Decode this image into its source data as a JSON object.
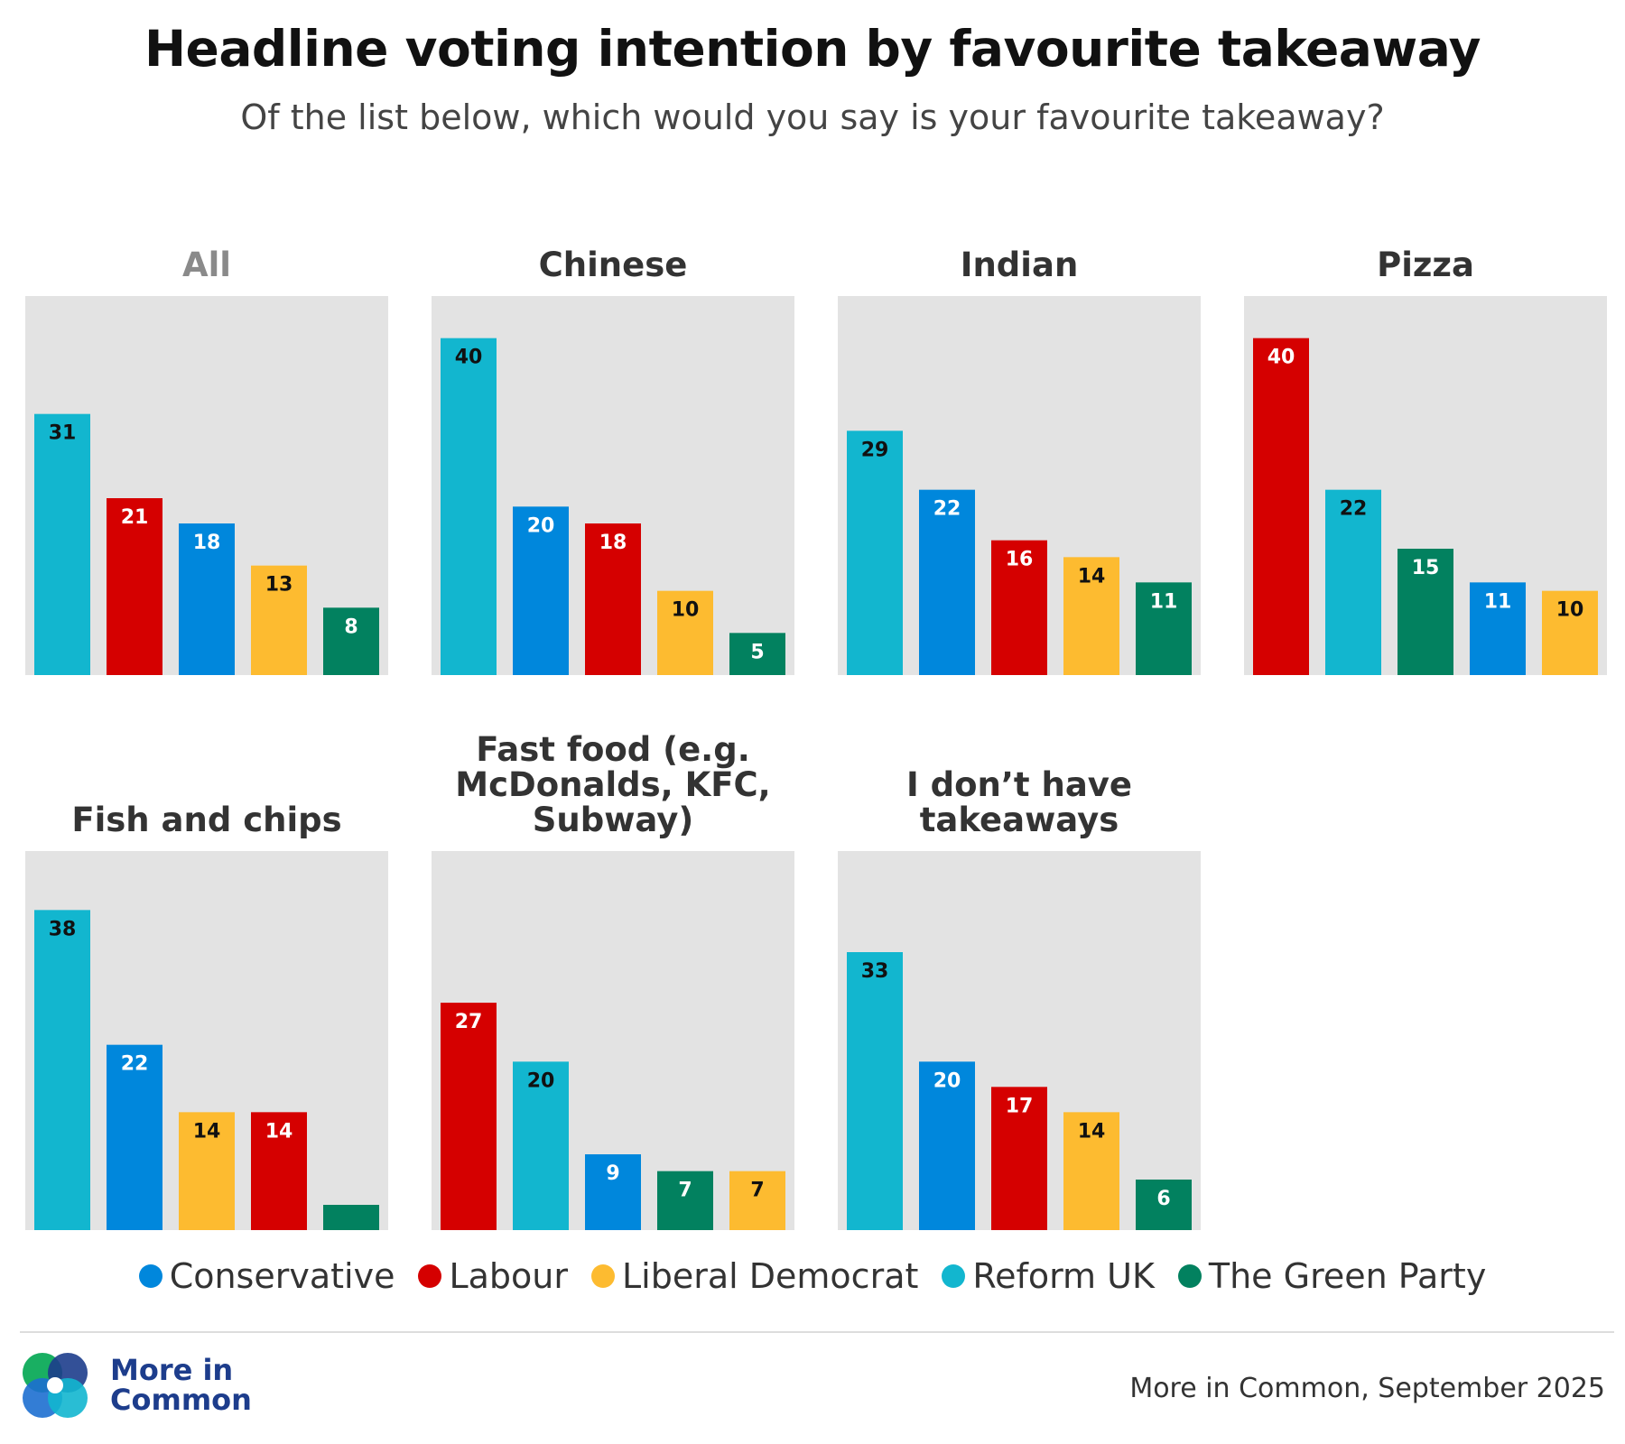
{
  "title": "Headline voting intention by favourite takeaway",
  "subtitle": "Of the list below, which would you say is your favourite takeaway?",
  "parties": {
    "Conservative": "#0087DC",
    "Labour": "#D50000",
    "Liberal Democrat": "#FDBB30",
    "Reform UK": "#12B6CF",
    "The Green Party": "#02815F"
  },
  "legend": [
    {
      "label": "Conservative",
      "color": "#0087DC"
    },
    {
      "label": "Labour",
      "color": "#D50000"
    },
    {
      "label": "Liberal Democrat",
      "color": "#FDBB30"
    },
    {
      "label": "Reform UK",
      "color": "#12B6CF"
    },
    {
      "label": "The Green Party",
      "color": "#02815F"
    }
  ],
  "chart_data": {
    "type": "bar",
    "title": "Headline voting intention by favourite takeaway",
    "ylim": [
      0,
      45
    ],
    "panels": [
      {
        "title": "All",
        "bars": [
          {
            "party": "Reform UK",
            "value": 31,
            "label": "31"
          },
          {
            "party": "Labour",
            "value": 21,
            "label": "21"
          },
          {
            "party": "Conservative",
            "value": 18,
            "label": "18"
          },
          {
            "party": "Liberal Democrat",
            "value": 13,
            "label": "13"
          },
          {
            "party": "The Green Party",
            "value": 8,
            "label": "8"
          }
        ]
      },
      {
        "title": "Chinese",
        "bars": [
          {
            "party": "Reform UK",
            "value": 40,
            "label": "40"
          },
          {
            "party": "Conservative",
            "value": 20,
            "label": "20"
          },
          {
            "party": "Labour",
            "value": 18,
            "label": "18"
          },
          {
            "party": "Liberal Democrat",
            "value": 10,
            "label": "10"
          },
          {
            "party": "The Green Party",
            "value": 5,
            "label": "5"
          }
        ]
      },
      {
        "title": "Indian",
        "bars": [
          {
            "party": "Reform UK",
            "value": 29,
            "label": "29"
          },
          {
            "party": "Conservative",
            "value": 22,
            "label": "22"
          },
          {
            "party": "Labour",
            "value": 16,
            "label": "16"
          },
          {
            "party": "Liberal Democrat",
            "value": 14,
            "label": "14"
          },
          {
            "party": "The Green Party",
            "value": 11,
            "label": "11"
          }
        ]
      },
      {
        "title": "Pizza",
        "bars": [
          {
            "party": "Labour",
            "value": 40,
            "label": "40"
          },
          {
            "party": "Reform UK",
            "value": 22,
            "label": "22"
          },
          {
            "party": "The Green Party",
            "value": 15,
            "label": "15"
          },
          {
            "party": "Conservative",
            "value": 11,
            "label": "11"
          },
          {
            "party": "Liberal Democrat",
            "value": 10,
            "label": "10"
          }
        ]
      },
      {
        "title": "Fish and chips",
        "bars": [
          {
            "party": "Reform UK",
            "value": 38,
            "label": "38"
          },
          {
            "party": "Conservative",
            "value": 22,
            "label": "22"
          },
          {
            "party": "Liberal Democrat",
            "value": 14,
            "label": "14"
          },
          {
            "party": "Labour",
            "value": 14,
            "label": "14"
          },
          {
            "party": "The Green Party",
            "value": 3,
            "label": ""
          }
        ]
      },
      {
        "title": "Fast food (e.g. McDonalds, KFC, Subway)",
        "bars": [
          {
            "party": "Labour",
            "value": 27,
            "label": "27"
          },
          {
            "party": "Reform UK",
            "value": 20,
            "label": "20"
          },
          {
            "party": "Conservative",
            "value": 9,
            "label": "9"
          },
          {
            "party": "The Green Party",
            "value": 7,
            "label": "7"
          },
          {
            "party": "Liberal Democrat",
            "value": 7,
            "label": "7"
          }
        ]
      },
      {
        "title": "I don’t have takeaways",
        "bars": [
          {
            "party": "Reform UK",
            "value": 33,
            "label": "33"
          },
          {
            "party": "Conservative",
            "value": 20,
            "label": "20"
          },
          {
            "party": "Labour",
            "value": 17,
            "label": "17"
          },
          {
            "party": "Liberal Democrat",
            "value": 14,
            "label": "14"
          },
          {
            "party": "The Green Party",
            "value": 6,
            "label": "6"
          }
        ]
      }
    ]
  },
  "footer": {
    "logo_line1": "More in",
    "logo_line2": "Common",
    "source": "More in Common, September 2025"
  }
}
